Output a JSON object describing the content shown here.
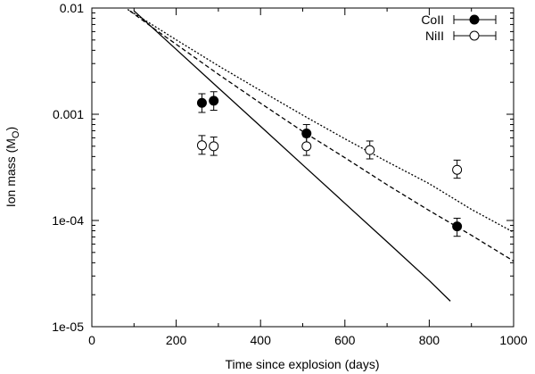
{
  "chart_data": {
    "type": "scatter",
    "xlabel": "Time since explosion (days)",
    "ylabel_main": "Ion mass (M",
    "ylabel_sub": "O",
    "ylabel_close": ")",
    "x_range": [
      0,
      1000
    ],
    "y_range": [
      1e-05,
      0.01
    ],
    "y_scale": "log",
    "legend_position": "top-right",
    "x_ticks": [
      {
        "value": 0,
        "label": "0"
      },
      {
        "value": 200,
        "label": "200"
      },
      {
        "value": 400,
        "label": "400"
      },
      {
        "value": 600,
        "label": "600"
      },
      {
        "value": 800,
        "label": "800"
      },
      {
        "value": 1000,
        "label": "1000"
      }
    ],
    "y_ticks": [
      {
        "value": 1e-05,
        "label": "1e-05"
      },
      {
        "value": 0.0001,
        "label": "1e-04"
      },
      {
        "value": 0.001,
        "label": "0.001"
      },
      {
        "value": 0.01,
        "label": "0.01"
      }
    ],
    "series": [
      {
        "name": "CoII",
        "marker": "filled-circle",
        "points": [
          {
            "x": 261,
            "y": 0.00128,
            "ylow": 0.00104,
            "yhigh": 0.00156
          },
          {
            "x": 289,
            "y": 0.00134,
            "ylow": 0.00109,
            "yhigh": 0.00163
          },
          {
            "x": 509,
            "y": 0.00066,
            "ylow": 0.00053,
            "yhigh": 0.0008
          },
          {
            "x": 866,
            "y": 8.8e-05,
            "ylow": 7.1e-05,
            "yhigh": 0.000105
          }
        ]
      },
      {
        "name": "NiII",
        "marker": "open-circle",
        "points": [
          {
            "x": 261,
            "y": 0.00051,
            "ylow": 0.00042,
            "yhigh": 0.00063
          },
          {
            "x": 289,
            "y": 0.0005,
            "ylow": 0.00041,
            "yhigh": 0.00061
          },
          {
            "x": 509,
            "y": 0.0005,
            "ylow": 0.00041,
            "yhigh": 0.00061
          },
          {
            "x": 659,
            "y": 0.00046,
            "ylow": 0.00038,
            "yhigh": 0.00056
          },
          {
            "x": 866,
            "y": 0.0003,
            "ylow": 0.00025,
            "yhigh": 0.00037
          }
        ]
      }
    ],
    "model_curves": [
      {
        "name": "solid",
        "dash": "solid",
        "points": [
          [
            100,
            0.0094
          ],
          [
            200,
            0.00408
          ],
          [
            300,
            0.00177
          ],
          [
            400,
            0.00077
          ],
          [
            500,
            0.000334
          ],
          [
            600,
            0.000145
          ],
          [
            700,
            6.3e-05
          ],
          [
            800,
            2.72e-05
          ],
          [
            850,
            1.74e-05
          ]
        ]
      },
      {
        "name": "dashed",
        "dash": "dashed",
        "points": [
          [
            90,
            0.0094
          ],
          [
            150,
            0.0063
          ],
          [
            200,
            0.00456
          ],
          [
            300,
            0.00238
          ],
          [
            400,
            0.00127
          ],
          [
            500,
            0.00069
          ],
          [
            600,
            0.00039
          ],
          [
            700,
            0.000217
          ],
          [
            800,
            0.000124
          ],
          [
            900,
            7.25e-05
          ],
          [
            1000,
            4.15e-05
          ]
        ]
      },
      {
        "name": "dotted",
        "dash": "dotted",
        "points": [
          [
            85,
            0.0097
          ],
          [
            150,
            0.0067
          ],
          [
            200,
            0.00502
          ],
          [
            300,
            0.00286
          ],
          [
            400,
            0.00167
          ],
          [
            500,
            0.00098
          ],
          [
            600,
            0.000587
          ],
          [
            700,
            0.000358
          ],
          [
            800,
            0.000222
          ],
          [
            900,
            0.000127
          ],
          [
            1000,
            7.75e-05
          ]
        ]
      }
    ]
  }
}
